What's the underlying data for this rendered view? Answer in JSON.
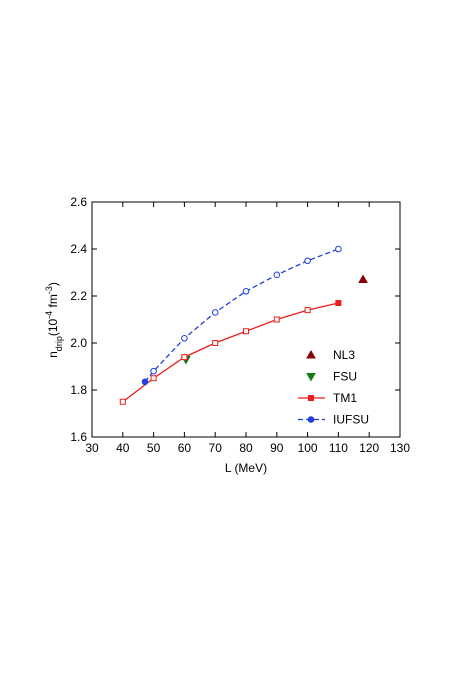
{
  "chart_data": {
    "type": "line",
    "x_label": "L (MeV)",
    "y_label_parts": [
      "n",
      "drip",
      "(10",
      "-4",
      " fm",
      "-3",
      ")"
    ],
    "xlim": [
      30,
      130
    ],
    "xticks": [
      30,
      40,
      50,
      60,
      70,
      80,
      90,
      100,
      110,
      120,
      130
    ],
    "ylim": [
      1.6,
      2.6
    ],
    "yticks": [
      1.6,
      1.8,
      {
        "value": 2,
        "label": "2.0"
      },
      2.2,
      2.4,
      2.6
    ],
    "legend": "lower right",
    "series": [
      {
        "name": "NL3",
        "color": "#8b0000",
        "marker": "triangle-up",
        "line": "none",
        "x": [
          118
        ],
        "values": [
          2.27
        ],
        "filled_points": [
          0
        ]
      },
      {
        "name": "FSU",
        "color": "#1a7a1a",
        "marker": "triangle-down",
        "line": "none",
        "x": [
          60.5
        ],
        "values": [
          1.93
        ],
        "filled_points": [
          0
        ]
      },
      {
        "name": "TM1",
        "color": "#ee1c1c",
        "marker": "square",
        "line": "solid",
        "x": [
          40,
          50,
          60,
          70,
          80,
          90,
          100,
          110
        ],
        "values": [
          1.75,
          1.85,
          1.94,
          2.0,
          2.05,
          2.1,
          2.14,
          2.17
        ],
        "filled_points": [
          7
        ]
      },
      {
        "name": "IUFSU",
        "color": "#1f3fe0",
        "marker": "circle",
        "line": "dashed",
        "x": [
          47.2,
          50,
          60,
          70,
          80,
          90,
          100,
          110
        ],
        "values": [
          1.835,
          1.88,
          2.02,
          2.13,
          2.22,
          2.29,
          2.35,
          2.4
        ],
        "filled_points": [
          0
        ]
      }
    ]
  }
}
